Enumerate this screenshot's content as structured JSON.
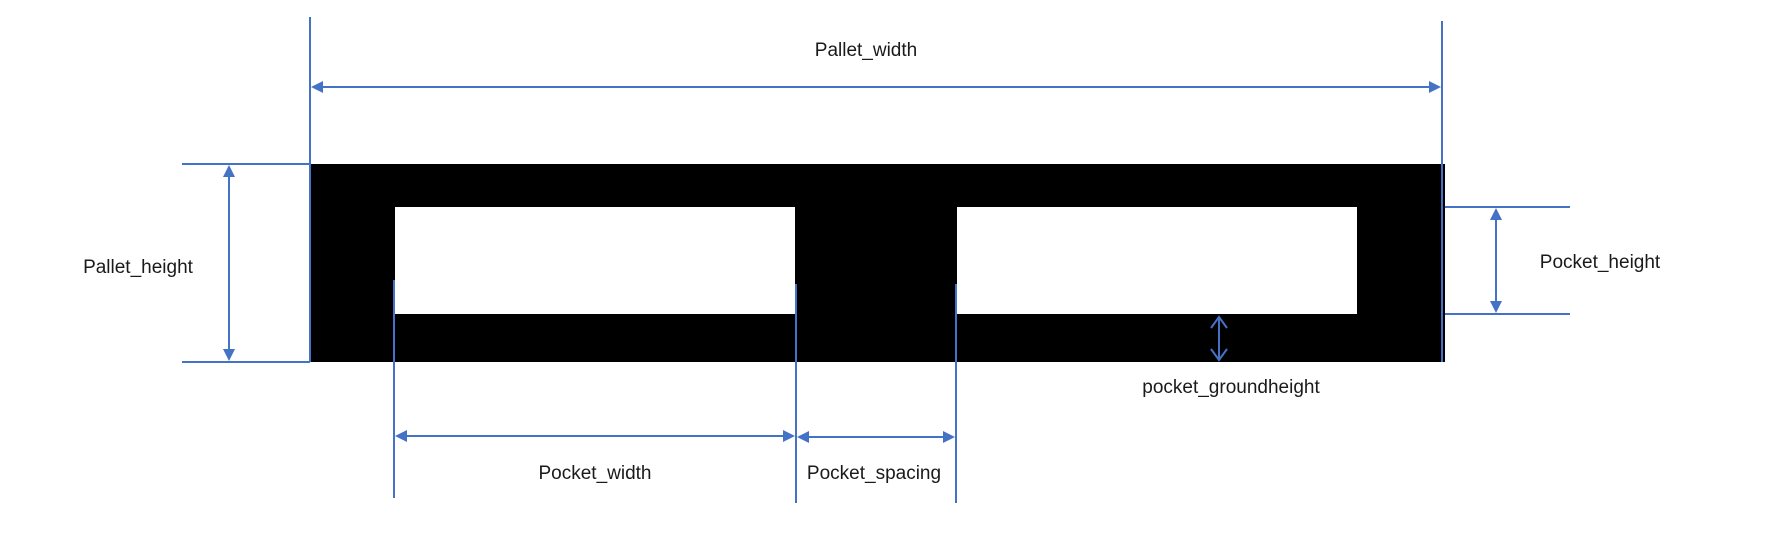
{
  "diagram": {
    "labels": {
      "pallet_width": "Pallet_width",
      "pallet_height": "Pallet_height",
      "pocket_height": "Pocket_height",
      "pocket_groundheight": "pocket_groundheight",
      "pocket_width": "Pocket_width",
      "pocket_spacing": "Pocket_spacing"
    },
    "colors": {
      "dimension_line": "#4472C4",
      "pallet_fill": "#000000",
      "pocket_fill": "#ffffff",
      "text": "#1a1a1a"
    }
  }
}
